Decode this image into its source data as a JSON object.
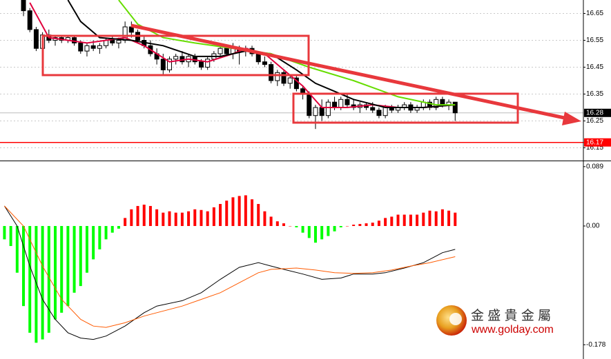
{
  "chart_data": [
    {
      "type": "candlestick",
      "xlim": [
        -0.7,
        91.2
      ],
      "ylim": [
        16.1,
        16.7
      ],
      "yticks": [
        16.65,
        16.55,
        16.45,
        16.35,
        16.25,
        16.15
      ],
      "grid": true,
      "up_color": "#ffffff",
      "down_color": "#000000",
      "candles": {
        "x": [
          3,
          4,
          5,
          6,
          7,
          8,
          9,
          10,
          11,
          12,
          13,
          14,
          15,
          16,
          17,
          18,
          19,
          20,
          21,
          22,
          23,
          24,
          25,
          26,
          27,
          28,
          29,
          30,
          31,
          32,
          33,
          34,
          35,
          36,
          37,
          38,
          39,
          40,
          41,
          42,
          43,
          44,
          45,
          46,
          47,
          48,
          49,
          50,
          51,
          52,
          53,
          54,
          55,
          56,
          57,
          58,
          59,
          60,
          61,
          62,
          63,
          64,
          65,
          66,
          67,
          68,
          69,
          70,
          71
        ],
        "open": [
          16.7,
          16.66,
          16.59,
          16.52,
          16.57,
          16.55,
          16.56,
          16.55,
          16.56,
          16.54,
          16.51,
          16.53,
          16.52,
          16.53,
          16.55,
          16.54,
          16.55,
          16.6,
          16.58,
          16.55,
          16.53,
          16.5,
          16.48,
          16.44,
          16.48,
          16.49,
          16.47,
          16.49,
          16.47,
          16.45,
          16.48,
          16.5,
          16.52,
          16.5,
          16.52,
          16.51,
          16.52,
          16.5,
          16.47,
          16.46,
          16.4,
          16.43,
          16.39,
          16.41,
          16.37,
          16.35,
          16.27,
          16.3,
          16.27,
          16.32,
          16.3,
          16.33,
          16.31,
          16.3,
          16.31,
          16.3,
          16.29,
          16.27,
          16.3,
          16.29,
          16.3,
          16.31,
          16.29,
          16.3,
          16.32,
          16.3,
          16.33,
          16.31,
          16.32
        ],
        "high": [
          16.72,
          16.67,
          16.6,
          16.58,
          16.59,
          16.57,
          16.57,
          16.57,
          16.57,
          16.55,
          16.54,
          16.55,
          16.54,
          16.56,
          16.57,
          16.56,
          16.62,
          16.62,
          16.59,
          16.57,
          16.55,
          16.52,
          16.5,
          16.49,
          16.5,
          16.51,
          16.5,
          16.5,
          16.48,
          16.49,
          16.51,
          16.53,
          16.53,
          16.54,
          16.53,
          16.53,
          16.53,
          16.51,
          16.49,
          16.47,
          16.44,
          16.44,
          16.42,
          16.42,
          16.38,
          16.36,
          16.31,
          16.33,
          16.33,
          16.34,
          16.34,
          16.35,
          16.33,
          16.32,
          16.32,
          16.32,
          16.3,
          16.31,
          16.31,
          16.31,
          16.32,
          16.32,
          16.31,
          16.33,
          16.33,
          16.34,
          16.34,
          16.33,
          16.32
        ],
        "low": [
          16.64,
          16.58,
          16.51,
          16.5,
          16.54,
          16.53,
          16.54,
          16.54,
          16.53,
          16.5,
          16.49,
          16.51,
          16.5,
          16.52,
          16.53,
          16.52,
          16.54,
          16.56,
          16.54,
          16.52,
          16.49,
          16.46,
          16.42,
          16.43,
          16.46,
          16.46,
          16.45,
          16.46,
          16.44,
          16.44,
          16.47,
          16.49,
          16.49,
          16.48,
          16.46,
          16.49,
          16.49,
          16.46,
          16.45,
          16.39,
          16.38,
          16.38,
          16.37,
          16.36,
          16.33,
          16.26,
          16.22,
          16.25,
          16.26,
          16.29,
          16.29,
          16.3,
          16.29,
          16.28,
          16.29,
          16.28,
          16.26,
          16.26,
          16.28,
          16.28,
          16.29,
          16.28,
          16.28,
          16.29,
          16.29,
          16.29,
          16.3,
          16.29,
          16.25
        ],
        "close": [
          16.66,
          16.59,
          16.52,
          16.57,
          16.55,
          16.56,
          16.55,
          16.56,
          16.54,
          16.51,
          16.53,
          16.52,
          16.53,
          16.55,
          16.54,
          16.55,
          16.6,
          16.58,
          16.55,
          16.53,
          16.5,
          16.48,
          16.44,
          16.48,
          16.49,
          16.47,
          16.49,
          16.47,
          16.45,
          16.48,
          16.5,
          16.52,
          16.5,
          16.52,
          16.51,
          16.52,
          16.5,
          16.47,
          16.46,
          16.4,
          16.43,
          16.39,
          16.41,
          16.37,
          16.35,
          16.27,
          16.3,
          16.27,
          16.32,
          16.3,
          16.33,
          16.31,
          16.3,
          16.31,
          16.3,
          16.29,
          16.27,
          16.3,
          16.29,
          16.3,
          16.31,
          16.29,
          16.3,
          16.32,
          16.3,
          16.33,
          16.31,
          16.32,
          16.28
        ]
      },
      "series": [
        {
          "color": "#e0003c",
          "x": [
            4,
            7,
            10,
            13,
            16,
            19,
            22,
            26,
            29,
            32,
            36,
            38,
            41,
            44,
            47,
            50,
            54,
            58,
            62,
            66,
            71
          ],
          "values": [
            16.69,
            16.56,
            16.55,
            16.54,
            16.55,
            16.56,
            16.53,
            16.47,
            16.48,
            16.47,
            16.5,
            16.52,
            16.5,
            16.44,
            16.38,
            16.3,
            16.3,
            16.31,
            16.3,
            16.3,
            16.31
          ]
        },
        {
          "color": "#000000",
          "x": [
            10,
            12,
            15,
            20,
            25,
            30,
            34,
            38,
            42,
            46,
            49,
            52,
            55,
            60,
            66,
            71
          ],
          "values": [
            16.7,
            16.62,
            16.56,
            16.55,
            16.53,
            16.49,
            16.49,
            16.51,
            16.5,
            16.44,
            16.39,
            16.36,
            16.33,
            16.3,
            16.3,
            16.31
          ]
        },
        {
          "color": "#66dd00",
          "x": [
            18,
            21,
            25,
            30,
            36,
            42,
            48,
            55,
            62,
            68,
            71
          ],
          "values": [
            16.7,
            16.61,
            16.56,
            16.54,
            16.52,
            16.5,
            16.45,
            16.4,
            16.34,
            16.31,
            16.31
          ]
        }
      ],
      "current_price": 16.28,
      "level_line": 16.17,
      "level_color": "#ff0000"
    },
    {
      "type": "macd",
      "xlim": [
        -0.7,
        91.2
      ],
      "ylim": [
        -0.188,
        0.095
      ],
      "yticks": [
        0.089,
        {
          "value": 0,
          "label": "0.00"
        },
        -0.178
      ],
      "histogram": {
        "up_color": "#ff0000",
        "down_color": "#00ff00",
        "values": [
          -0.02,
          -0.03,
          -0.07,
          -0.12,
          -0.16,
          -0.175,
          -0.17,
          -0.16,
          -0.14,
          -0.13,
          -0.12,
          -0.1,
          -0.09,
          -0.07,
          -0.05,
          -0.035,
          -0.02,
          -0.01,
          -0.004,
          0.012,
          0.025,
          0.03,
          0.032,
          0.03,
          0.025,
          0.02,
          0.022,
          0.02,
          0.02,
          0.022,
          0.025,
          0.024,
          0.022,
          0.028,
          0.033,
          0.038,
          0.043,
          0.045,
          0.046,
          0.04,
          0.033,
          0.022,
          0.014,
          0.007,
          0.004,
          0.0,
          -0.002,
          -0.01,
          -0.018,
          -0.025,
          -0.02,
          -0.015,
          -0.008,
          -0.002,
          0.0,
          0.002,
          0.003,
          0.004,
          0.005,
          0.008,
          0.012,
          0.014,
          0.017,
          0.017,
          0.017,
          0.017,
          0.02,
          0.023,
          0.022,
          0.025,
          0.023,
          0.02
        ]
      },
      "series": [
        {
          "color": "#000000",
          "x": [
            0,
            2,
            4,
            6,
            8,
            10,
            12,
            14,
            16,
            19,
            22,
            24,
            28,
            31,
            34,
            37,
            40,
            42,
            44,
            47,
            50,
            53,
            55,
            58,
            60,
            63,
            66,
            69,
            71
          ],
          "values": [
            0.03,
            0.0,
            -0.06,
            -0.11,
            -0.14,
            -0.16,
            -0.168,
            -0.17,
            -0.165,
            -0.15,
            -0.13,
            -0.12,
            -0.112,
            -0.1,
            -0.08,
            -0.062,
            -0.055,
            -0.06,
            -0.065,
            -0.072,
            -0.08,
            -0.078,
            -0.072,
            -0.072,
            -0.07,
            -0.063,
            -0.055,
            -0.04,
            -0.035
          ]
        },
        {
          "color": "#ff5a00",
          "x": [
            0,
            3,
            6,
            9,
            12,
            14,
            16,
            19,
            22,
            24,
            28,
            31,
            34,
            37,
            40,
            42,
            46,
            49,
            52,
            55,
            58,
            61,
            64,
            67,
            71
          ],
          "values": [
            0.03,
            0.0,
            -0.06,
            -0.11,
            -0.14,
            -0.15,
            -0.152,
            -0.145,
            -0.135,
            -0.13,
            -0.12,
            -0.11,
            -0.1,
            -0.085,
            -0.07,
            -0.065,
            -0.063,
            -0.066,
            -0.07,
            -0.071,
            -0.07,
            -0.066,
            -0.06,
            -0.055,
            -0.046
          ]
        }
      ]
    }
  ],
  "watermark": {
    "name": "金 盛 貴 金 屬",
    "url": "www.golday.com"
  }
}
